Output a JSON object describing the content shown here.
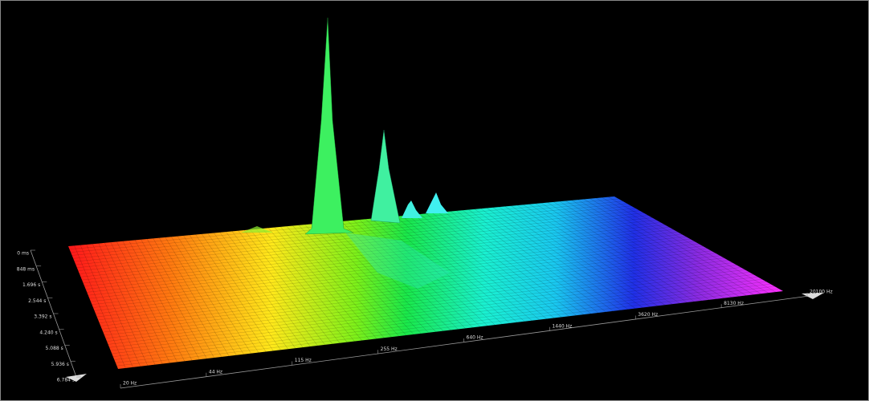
{
  "time_axis": {
    "labels": [
      "0 ms",
      "848 ms",
      "1.696 s",
      "2.544 s",
      "3.392 s",
      "4.240 s",
      "5.088 s",
      "5.936 s",
      "6.784 s"
    ]
  },
  "frequency_axis": {
    "labels": [
      "20 Hz",
      "44 Hz",
      "115 Hz",
      "255 Hz",
      "640 Hz",
      "1440 Hz",
      "3620 Hz",
      "8130 Hz",
      "20100 Hz"
    ]
  }
}
